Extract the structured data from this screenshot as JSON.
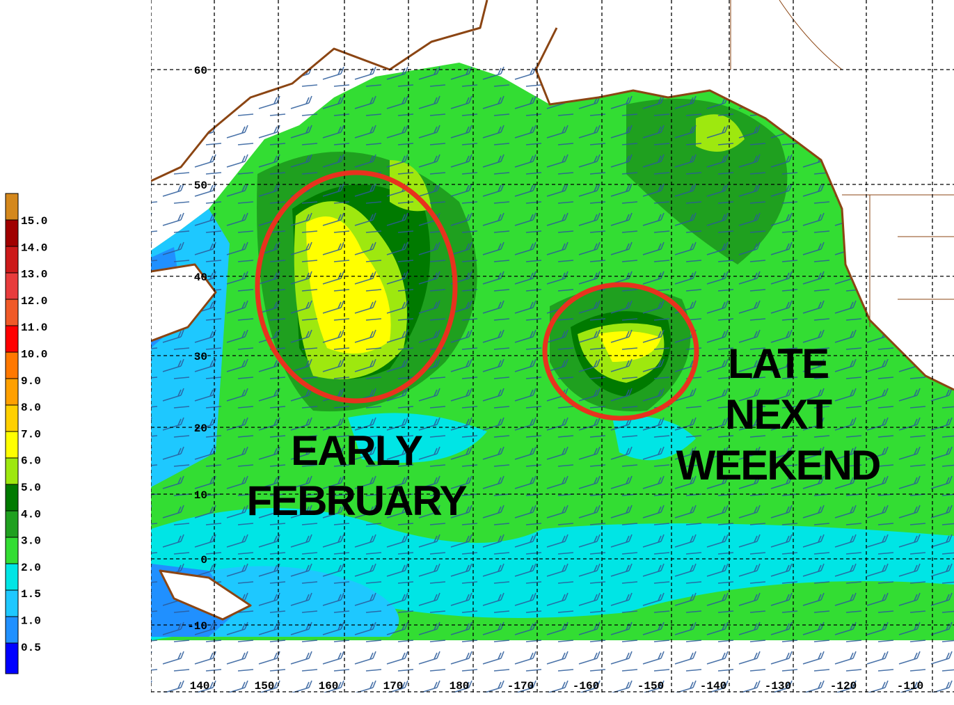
{
  "legend": {
    "labels": [
      "15.0",
      "14.0",
      "13.0",
      "12.0",
      "11.0",
      "10.0",
      "9.0",
      "8.0",
      "7.0",
      "6.0",
      "5.0",
      "4.0",
      "3.0",
      "2.0",
      "1.5",
      "1.0",
      "0.5"
    ]
  },
  "map": {
    "lat_labels": [
      "60",
      "50",
      "40",
      "30",
      "20",
      "10",
      "0",
      "-10"
    ],
    "lon_labels": [
      "140",
      "150",
      "160",
      "170",
      "180",
      "-170",
      "-160",
      "-150",
      "-140",
      "-130",
      "-120",
      "-110"
    ],
    "annotations": [
      {
        "lines": [
          "EARLY",
          "FEBRUARY"
        ]
      },
      {
        "lines": [
          "LATE",
          "NEXT",
          "WEEKEND"
        ]
      }
    ]
  }
}
